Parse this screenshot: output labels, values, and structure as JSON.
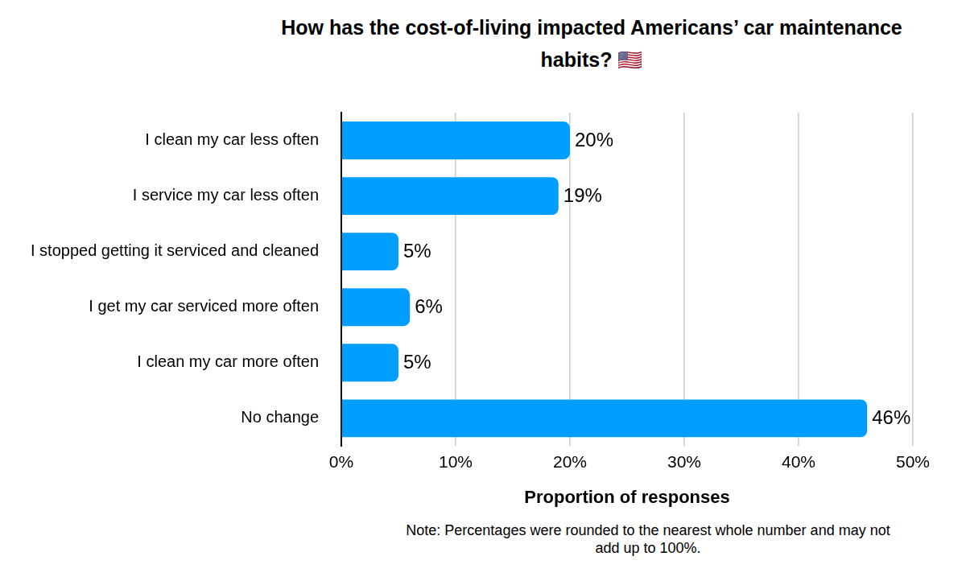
{
  "chart_data": {
    "type": "bar",
    "orientation": "horizontal",
    "title": "How has the cost-of-living impacted Americans’ car maintenance habits? 🇺🇸",
    "categories": [
      "I clean my car less often",
      "I service my car less often",
      "I stopped getting it serviced and cleaned",
      "I get my car serviced more often",
      "I clean my car more often",
      "No change"
    ],
    "values": [
      20,
      19,
      5,
      6,
      5,
      46
    ],
    "value_labels": [
      "20%",
      "19%",
      "5%",
      "6%",
      "5%",
      "46%"
    ],
    "color": "#009fff",
    "xlabel": "Proportion of responses",
    "xlim": [
      0,
      50
    ],
    "xticks": [
      {
        "value": 0,
        "label": "0%"
      },
      {
        "value": 10,
        "label": "10%"
      },
      {
        "value": 20,
        "label": "20%"
      },
      {
        "value": 30,
        "label": "30%"
      },
      {
        "value": 40,
        "label": "40%"
      },
      {
        "value": 50,
        "label": "50%"
      }
    ],
    "grid": true,
    "data_labels": true,
    "note": "Note: Percentages were rounded to the nearest whole number and may not add up to 100%."
  }
}
